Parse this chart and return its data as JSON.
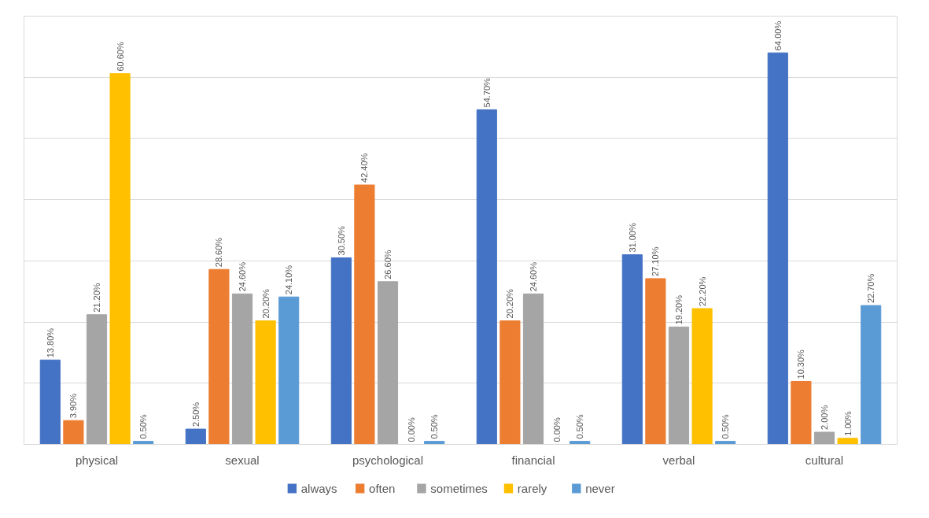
{
  "chart_data": {
    "type": "bar",
    "categories": [
      "physical",
      "sexual",
      "psychological",
      "financial",
      "verbal",
      "cultural"
    ],
    "series": [
      {
        "name": "always",
        "color": "#4472c4",
        "values": [
          13.8,
          2.5,
          30.5,
          54.7,
          31.0,
          64.0
        ],
        "value_labels": [
          "13.80%",
          "2.50%",
          "30.50%",
          "54.70%",
          "31.00%",
          "64.00%"
        ]
      },
      {
        "name": "often",
        "color": "#ed7d31",
        "values": [
          3.9,
          28.6,
          42.4,
          20.2,
          27.1,
          10.3
        ],
        "value_labels": [
          "3.90%",
          "28.60%",
          "42.40%",
          "20.20%",
          "27.10%",
          "10.30%"
        ]
      },
      {
        "name": "sometimes",
        "color": "#a5a5a5",
        "values": [
          21.2,
          24.6,
          26.6,
          24.6,
          19.2,
          2.0
        ],
        "value_labels": [
          "21.20%",
          "24.60%",
          "26.60%",
          "24.60%",
          "19.20%",
          "2.00%"
        ]
      },
      {
        "name": "rarely",
        "color": "#ffc000",
        "values": [
          60.6,
          20.2,
          0.0,
          0.0,
          22.2,
          1.0
        ],
        "value_labels": [
          "60.60%",
          "20.20%",
          "0.00%",
          "0.00%",
          "22.20%",
          "1.00%"
        ]
      },
      {
        "name": "never",
        "color": "#5b9bd5",
        "values": [
          0.5,
          24.1,
          0.5,
          0.5,
          0.5,
          22.7
        ],
        "value_labels": [
          "0.50%",
          "24.10%",
          "0.50%",
          "0.50%",
          "0.50%",
          "22.70%"
        ]
      }
    ],
    "ylim": [
      0,
      70
    ],
    "yticks": [
      {
        "value": 0,
        "label": null
      },
      {
        "value": 10,
        "label": null
      },
      {
        "value": 20,
        "label": null
      },
      {
        "value": 30,
        "label": null
      },
      {
        "value": 40,
        "label": null
      },
      {
        "value": 50,
        "label": null
      },
      {
        "value": 60,
        "label": null
      },
      {
        "value": 70,
        "label": null
      }
    ],
    "grid": "y",
    "legend": "bottom",
    "tick_labels": "x"
  }
}
